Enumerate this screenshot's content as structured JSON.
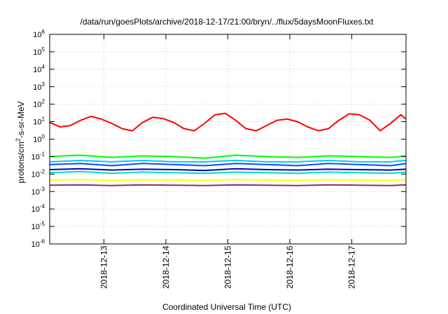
{
  "chart_data": {
    "type": "line",
    "title": "/data/run/goesPlots/archive/2018-12-17/21:00/bryn/../flux/5daysMoonFluxes.txt",
    "xlabel": "Coordinated Universal Time (UTC)",
    "ylabel": {
      "prefix": "protons/cm",
      "sup": "2",
      "suffix": "-s-sr-MeV"
    },
    "y_scale": "log",
    "ylim": [
      1e-06,
      1000000.0
    ],
    "yticks": [
      {
        "base": "10",
        "exp": "-6",
        "value": 1e-06
      },
      {
        "base": "10",
        "exp": "-5",
        "value": 1e-05
      },
      {
        "base": "10",
        "exp": "-4",
        "value": 0.0001
      },
      {
        "base": "10",
        "exp": "-3",
        "value": 0.001
      },
      {
        "base": "10",
        "exp": "-2",
        "value": 0.01
      },
      {
        "base": "10",
        "exp": "-1",
        "value": 0.1
      },
      {
        "base": "10",
        "exp": "0",
        "value": 1
      },
      {
        "base": "10",
        "exp": "1",
        "value": 10
      },
      {
        "base": "10",
        "exp": "2",
        "value": 100
      },
      {
        "base": "10",
        "exp": "3",
        "value": 1000
      },
      {
        "base": "10",
        "exp": "4",
        "value": 10000
      },
      {
        "base": "10",
        "exp": "5",
        "value": 100000
      },
      {
        "base": "10",
        "exp": "6",
        "value": 1000000
      }
    ],
    "xlim": [
      "2018-12-12T03:00",
      "2018-12-17T21:00"
    ],
    "xticks": [
      "2018-12-13",
      "2018-12-14",
      "2018-12-15",
      "2018-12-16",
      "2018-12-17"
    ],
    "grid": true,
    "legend": "none",
    "series": [
      {
        "color": "#ff0000",
        "x": [
          "2018-12-12T03:00",
          "2018-12-12T07:00",
          "2018-12-12T11:00",
          "2018-12-12T15:00",
          "2018-12-12T19:00",
          "2018-12-12T23:00",
          "2018-12-13T03:00",
          "2018-12-13T07:00",
          "2018-12-13T11:00",
          "2018-12-13T15:00",
          "2018-12-13T19:00",
          "2018-12-13T23:00",
          "2018-12-14T03:00",
          "2018-12-14T07:00",
          "2018-12-14T11:00",
          "2018-12-14T15:00",
          "2018-12-14T19:00",
          "2018-12-14T23:00",
          "2018-12-15T03:00",
          "2018-12-15T07:00",
          "2018-12-15T11:00",
          "2018-12-15T15:00",
          "2018-12-15T19:00",
          "2018-12-15T23:00",
          "2018-12-16T03:00",
          "2018-12-16T07:00",
          "2018-12-16T11:00",
          "2018-12-16T15:00",
          "2018-12-16T19:00",
          "2018-12-16T23:00",
          "2018-12-17T03:00",
          "2018-12-17T07:00",
          "2018-12-17T11:00",
          "2018-12-17T15:00",
          "2018-12-17T19:00",
          "2018-12-17T21:00"
        ],
        "values": [
          9,
          5,
          6,
          12,
          20,
          14,
          8,
          4,
          3,
          9,
          18,
          15,
          9,
          4,
          3,
          8,
          25,
          30,
          12,
          4,
          3,
          6,
          12,
          14,
          10,
          5,
          3,
          4,
          12,
          28,
          25,
          12,
          3,
          8,
          25,
          14
        ]
      },
      {
        "color": "#00ff00",
        "x": [
          "2018-12-12T03:00",
          "2018-12-12T15:00",
          "2018-12-13T03:00",
          "2018-12-13T15:00",
          "2018-12-14T03:00",
          "2018-12-14T15:00",
          "2018-12-15T03:00",
          "2018-12-15T15:00",
          "2018-12-16T03:00",
          "2018-12-16T15:00",
          "2018-12-17T03:00",
          "2018-12-17T15:00",
          "2018-12-17T21:00"
        ],
        "values": [
          0.1,
          0.12,
          0.09,
          0.11,
          0.1,
          0.08,
          0.12,
          0.1,
          0.09,
          0.11,
          0.1,
          0.09,
          0.11
        ]
      },
      {
        "color": "#00c8ff",
        "x": [
          "2018-12-12T03:00",
          "2018-12-12T15:00",
          "2018-12-13T03:00",
          "2018-12-13T15:00",
          "2018-12-14T03:00",
          "2018-12-14T15:00",
          "2018-12-15T03:00",
          "2018-12-15T15:00",
          "2018-12-16T03:00",
          "2018-12-16T15:00",
          "2018-12-17T03:00",
          "2018-12-17T15:00",
          "2018-12-17T21:00"
        ],
        "values": [
          0.05,
          0.06,
          0.05,
          0.06,
          0.05,
          0.05,
          0.06,
          0.05,
          0.05,
          0.06,
          0.05,
          0.05,
          0.06
        ]
      },
      {
        "color": "#0050ff",
        "x": [
          "2018-12-12T03:00",
          "2018-12-12T15:00",
          "2018-12-13T03:00",
          "2018-12-13T15:00",
          "2018-12-14T03:00",
          "2018-12-14T15:00",
          "2018-12-15T03:00",
          "2018-12-15T15:00",
          "2018-12-16T03:00",
          "2018-12-16T15:00",
          "2018-12-17T03:00",
          "2018-12-17T15:00",
          "2018-12-17T21:00"
        ],
        "values": [
          0.035,
          0.04,
          0.03,
          0.04,
          0.035,
          0.03,
          0.04,
          0.035,
          0.03,
          0.04,
          0.035,
          0.03,
          0.04
        ]
      },
      {
        "color": "#00e0c0",
        "x": [
          "2018-12-12T03:00",
          "2018-12-12T15:00",
          "2018-12-13T03:00",
          "2018-12-13T15:00",
          "2018-12-14T03:00",
          "2018-12-14T15:00",
          "2018-12-15T03:00",
          "2018-12-15T15:00",
          "2018-12-16T03:00",
          "2018-12-16T15:00",
          "2018-12-17T03:00",
          "2018-12-17T15:00",
          "2018-12-17T21:00"
        ],
        "values": [
          0.012,
          0.014,
          0.011,
          0.013,
          0.012,
          0.011,
          0.013,
          0.012,
          0.011,
          0.013,
          0.012,
          0.011,
          0.013
        ]
      },
      {
        "color": "#0000c8",
        "x": [
          "2018-12-12T03:00",
          "2018-12-12T15:00",
          "2018-12-13T03:00",
          "2018-12-13T15:00",
          "2018-12-14T03:00",
          "2018-12-14T15:00",
          "2018-12-15T03:00",
          "2018-12-15T15:00",
          "2018-12-16T03:00",
          "2018-12-16T15:00",
          "2018-12-17T03:00",
          "2018-12-17T15:00",
          "2018-12-17T21:00"
        ],
        "values": [
          0.018,
          0.02,
          0.017,
          0.019,
          0.018,
          0.016,
          0.02,
          0.018,
          0.017,
          0.019,
          0.018,
          0.017,
          0.019
        ]
      },
      {
        "color": "#ffff00",
        "x": [
          "2018-12-12T03:00",
          "2018-12-12T15:00",
          "2018-12-13T03:00",
          "2018-12-13T15:00",
          "2018-12-14T03:00",
          "2018-12-14T15:00",
          "2018-12-15T03:00",
          "2018-12-15T15:00",
          "2018-12-16T03:00",
          "2018-12-16T15:00",
          "2018-12-17T03:00",
          "2018-12-17T15:00",
          "2018-12-17T21:00"
        ],
        "values": [
          0.0045,
          0.0048,
          0.0044,
          0.0047,
          0.0045,
          0.0044,
          0.0048,
          0.0045,
          0.0044,
          0.0047,
          0.0045,
          0.0044,
          0.0047
        ]
      },
      {
        "color": "#8c2a7a",
        "x": [
          "2018-12-12T03:00",
          "2018-12-12T15:00",
          "2018-12-13T03:00",
          "2018-12-13T15:00",
          "2018-12-14T03:00",
          "2018-12-14T15:00",
          "2018-12-15T03:00",
          "2018-12-15T15:00",
          "2018-12-16T03:00",
          "2018-12-16T15:00",
          "2018-12-17T03:00",
          "2018-12-17T15:00",
          "2018-12-17T21:00"
        ],
        "values": [
          0.0023,
          0.0024,
          0.0022,
          0.0024,
          0.0023,
          0.0022,
          0.0024,
          0.0023,
          0.0022,
          0.0024,
          0.0023,
          0.0022,
          0.0024
        ]
      }
    ]
  }
}
